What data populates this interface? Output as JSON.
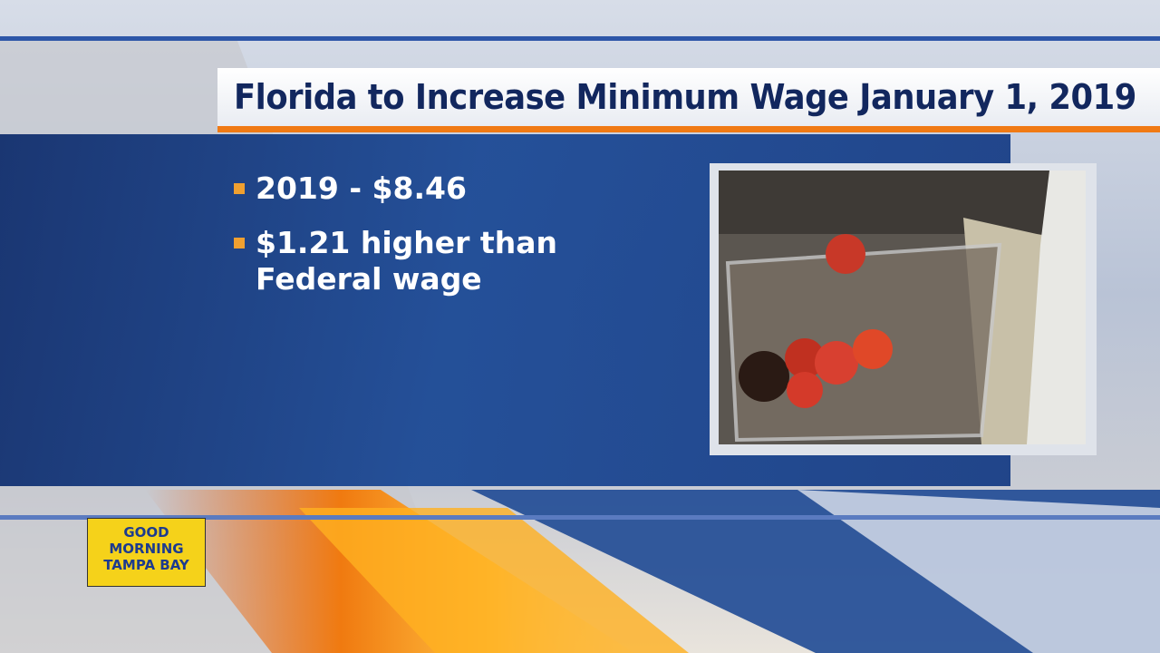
{
  "header": {
    "title": "Florida to Increase Minimum Wage January 1, 2019"
  },
  "bullets": [
    "2019 - $8.46",
    "$1.21 higher than Federal wage"
  ],
  "logo": {
    "lines": [
      "GOOD",
      "MORNING",
      "TAMPA BAY"
    ]
  }
}
